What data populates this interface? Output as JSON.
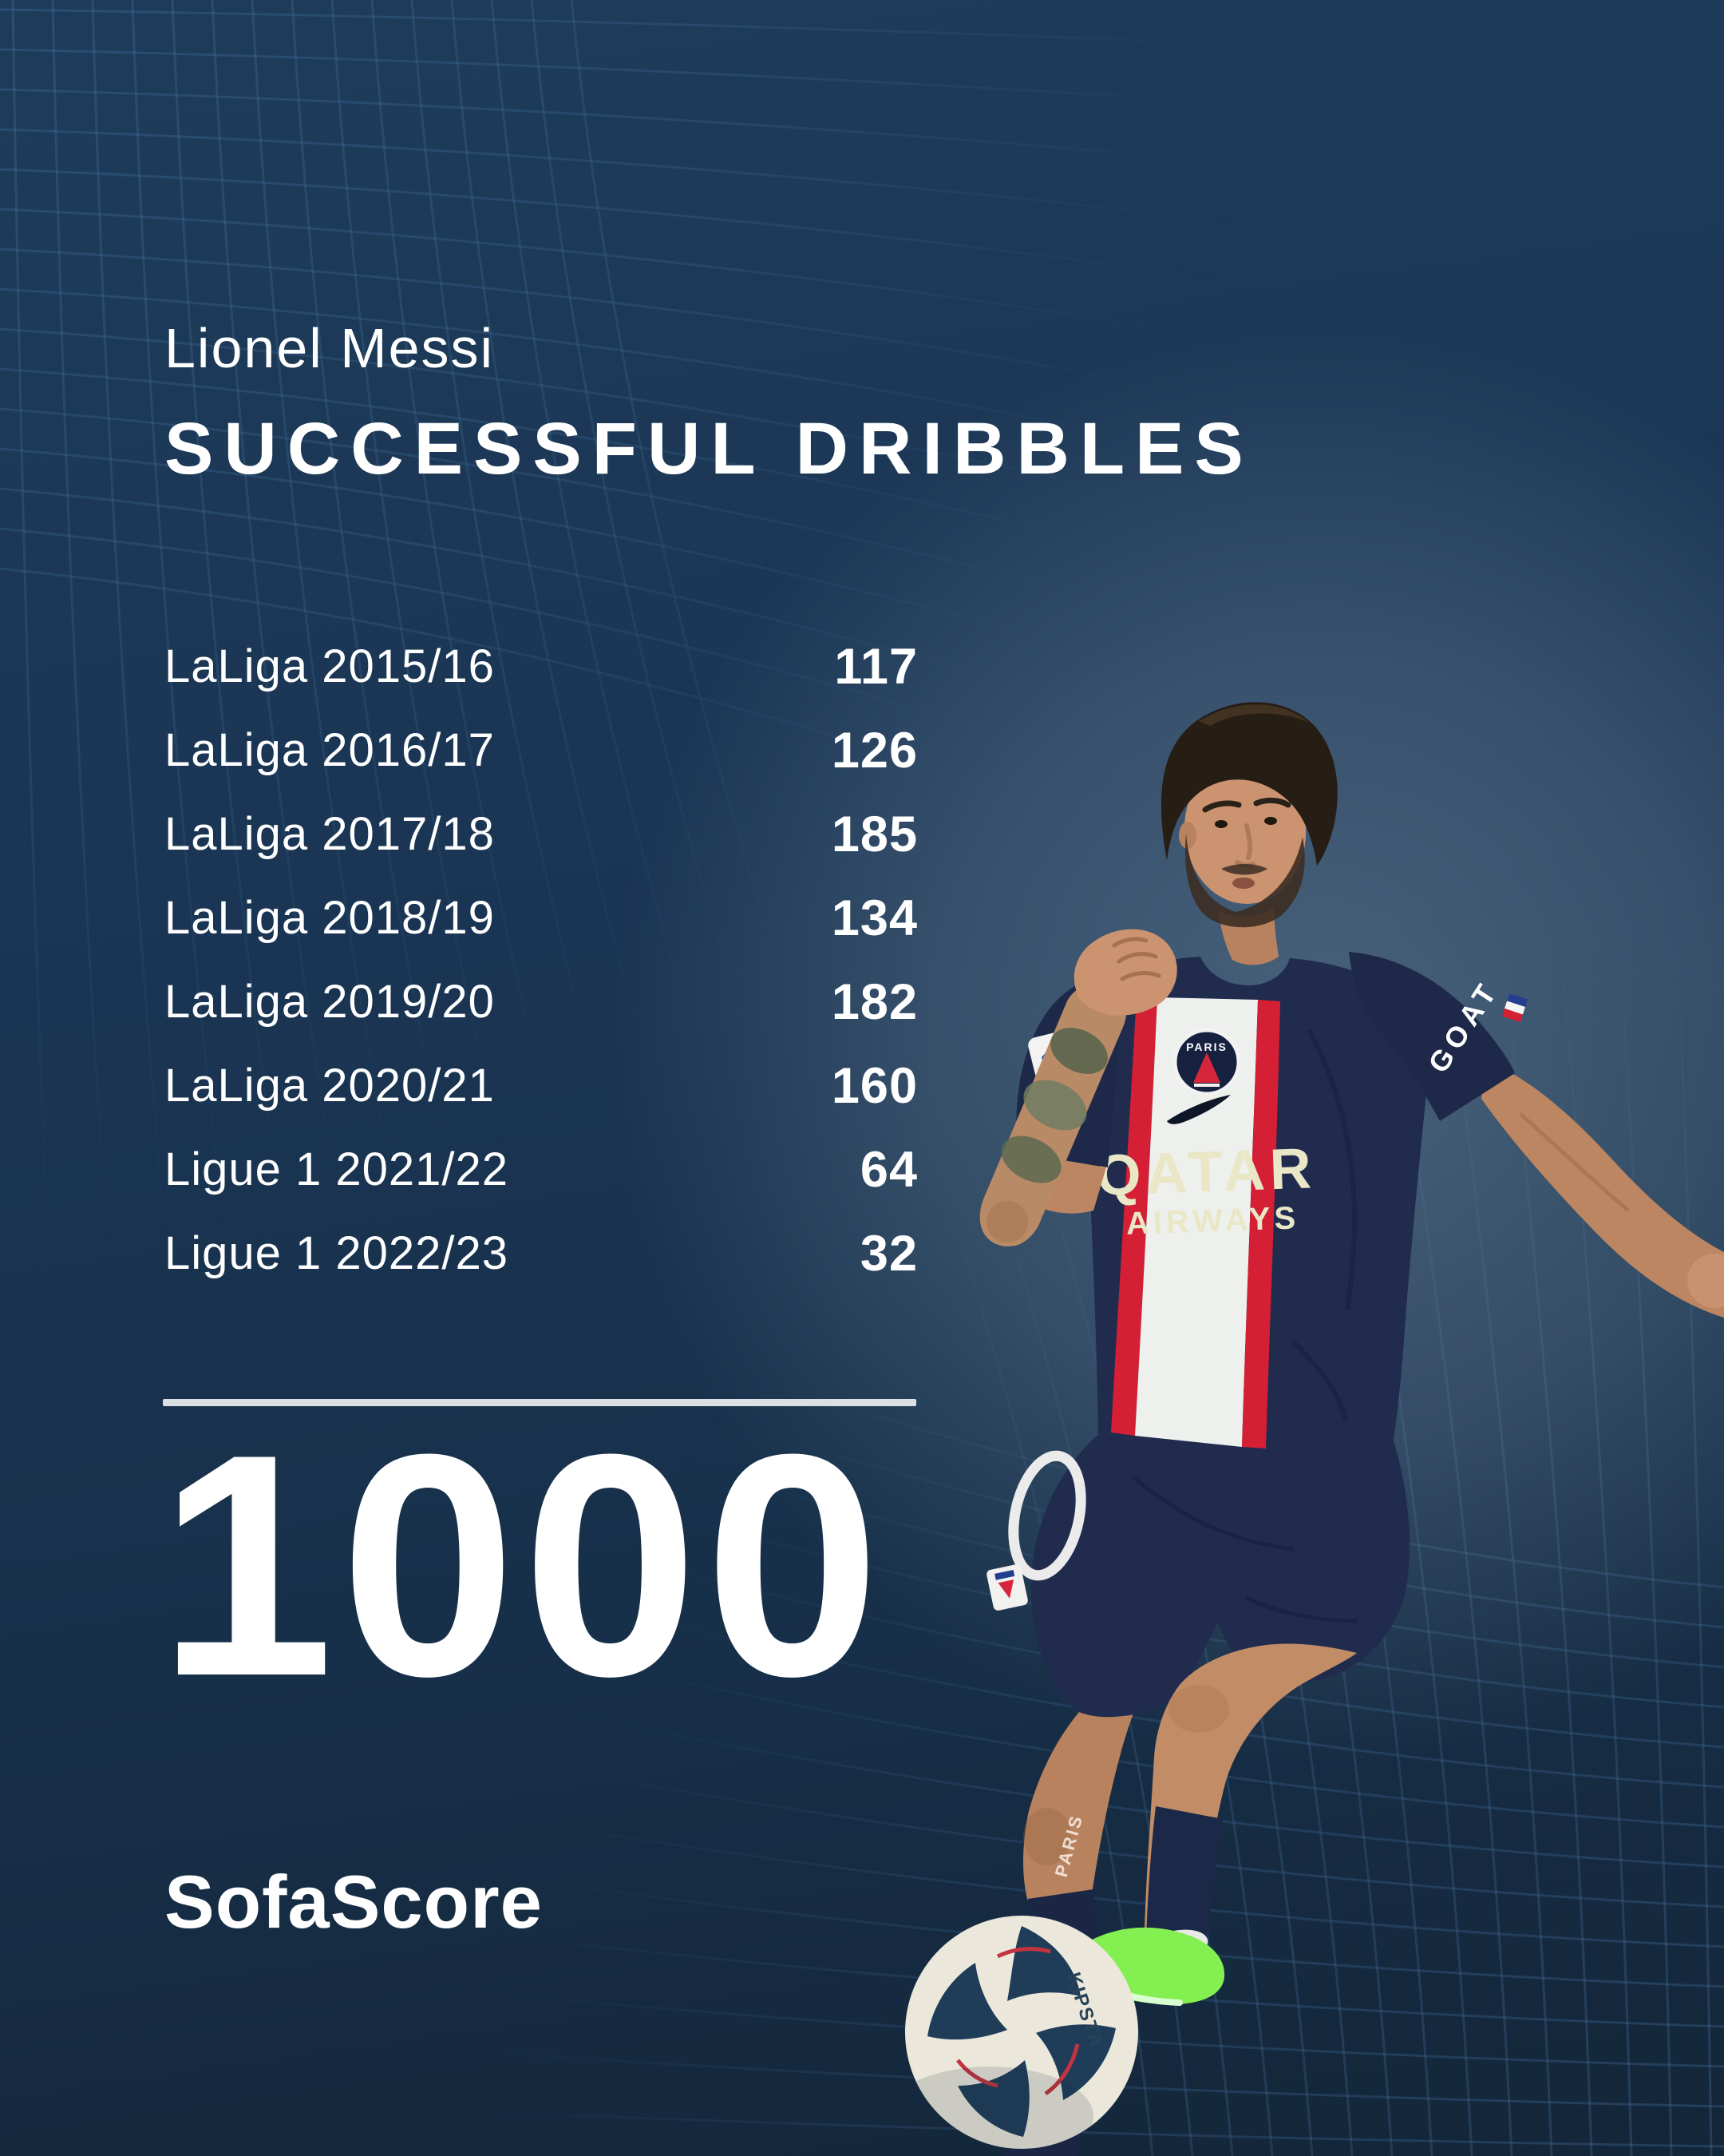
{
  "header": {
    "player_name": "Lionel Messi",
    "stat_title": "SUCCESSFUL DRIBBLES"
  },
  "stats": {
    "rows": [
      {
        "label": "LaLiga 2015/16",
        "value": "117"
      },
      {
        "label": "LaLiga 2016/17",
        "value": "126"
      },
      {
        "label": "LaLiga 2017/18",
        "value": "185"
      },
      {
        "label": "LaLiga 2018/19",
        "value": "134"
      },
      {
        "label": "LaLiga 2019/20",
        "value": "182"
      },
      {
        "label": "LaLiga 2020/21",
        "value": "160"
      },
      {
        "label": "Ligue 1 2021/22",
        "value": "64"
      },
      {
        "label": "Ligue 1 2022/23",
        "value": "32"
      }
    ],
    "total": "1000"
  },
  "brand": {
    "logo_text": "SofaScore"
  },
  "photo": {
    "jersey_sponsor_line1": "QATAR",
    "jersey_sponsor_line2": "AIRWAYS",
    "sleeve_text": "GOAT",
    "crest_text": "PARIS",
    "sock_text": "PARIS",
    "ball_brand": "KIPSTA"
  },
  "colors": {
    "background_top": "#1e3c5a",
    "background_bottom": "#142639",
    "grid_line": "#4a77a6",
    "divider": "#dbe0e5",
    "text": "#ffffff",
    "jersey_navy": "#202b4e",
    "jersey_red": "#d41f34",
    "band_white": "#eef0ed",
    "sponsor_cream": "#e9e7c6",
    "boot_green": "#84ef50",
    "ball_base": "#ebe8db",
    "ball_pattern": "#1f3d58",
    "skin": "#c28c66"
  },
  "chart_data": {
    "type": "table",
    "title": "SUCCESSFUL DRIBBLES",
    "subject": "Lionel Messi",
    "categories": [
      "LaLiga 2015/16",
      "LaLiga 2016/17",
      "LaLiga 2017/18",
      "LaLiga 2018/19",
      "LaLiga 2019/20",
      "LaLiga 2020/21",
      "Ligue 1 2021/22",
      "Ligue 1 2022/23"
    ],
    "values": [
      117,
      126,
      185,
      134,
      182,
      160,
      64,
      32
    ],
    "total": 1000,
    "source": "SofaScore"
  }
}
